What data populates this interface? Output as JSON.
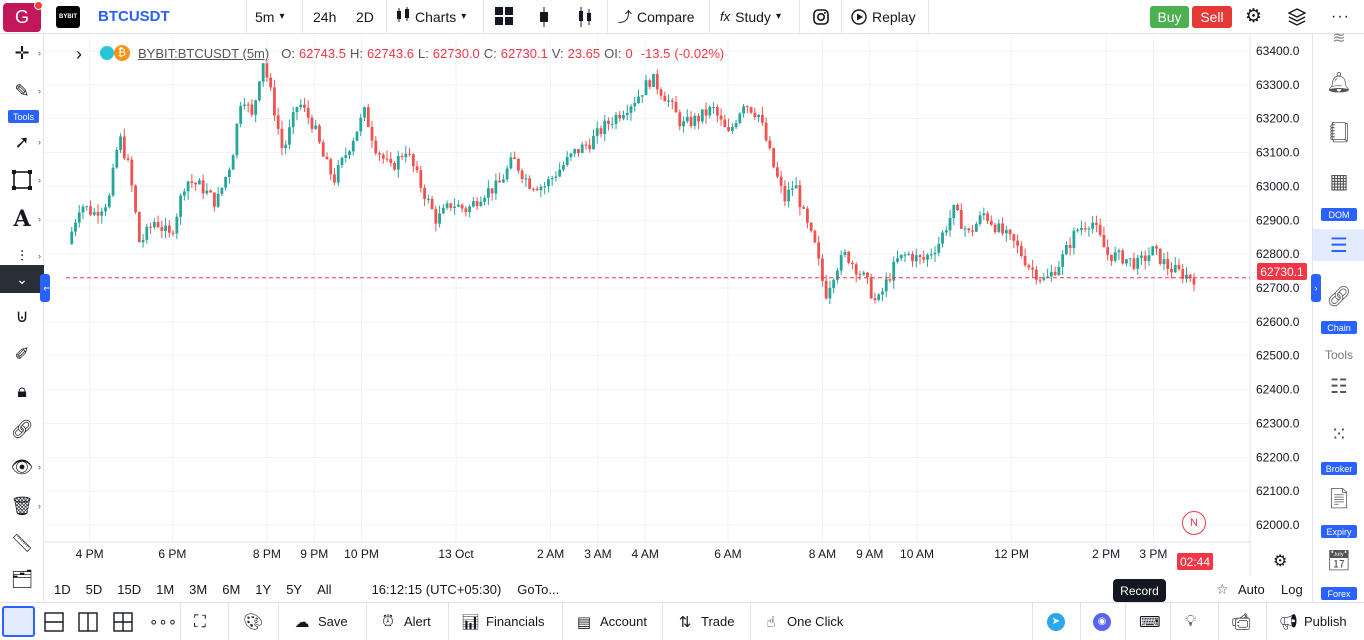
{
  "topbar": {
    "logo_letter": "G",
    "exchange_logo_text": "BYBIT",
    "symbol": "BTCUSDT",
    "interval": "5m",
    "range_24h": "24h",
    "range_2d": "2D",
    "charts_label": "Charts",
    "compare_label": "Compare",
    "study_label": "Study",
    "replay_label": "Replay",
    "buy_label": "Buy",
    "sell_label": "Sell"
  },
  "legend": {
    "symbol": "BYBIT:BTCUSDT (5m)",
    "o_label": "O:",
    "o_value": "62743.5",
    "h_label": "H:",
    "h_value": "62743.6",
    "l_label": "L:",
    "l_value": "62730.0",
    "c_label": "C:",
    "c_value": "62730.1",
    "v_label": "V:",
    "v_value": "23.65",
    "oi_label": "OI:",
    "oi_value": "0",
    "change": "-13.5",
    "change_pct": "(-0.02%)"
  },
  "left_toolbar": {
    "tools_label": "Tools"
  },
  "right_sidebar": {
    "dom_label": "DOM",
    "chain_label": "Chain",
    "tools_heading": "Tools",
    "broker_label": "Broker",
    "expiry_label": "Expiry",
    "forex_label": "Forex"
  },
  "chart_data": {
    "type": "candlestick",
    "current_price": "62730.1",
    "countdown": "02:44",
    "news_badge": "N",
    "y_ticks": [
      "63400.0",
      "63300.0",
      "63200.0",
      "63100.0",
      "63000.0",
      "62900.0",
      "62800.0",
      "62700.0",
      "62600.0",
      "62500.0",
      "62400.0",
      "62300.0",
      "62200.0",
      "62100.0",
      "62000.0"
    ],
    "ylim": [
      61950,
      63450
    ],
    "x_ticks": [
      {
        "label": "4 PM",
        "t": 0.02
      },
      {
        "label": "6 PM",
        "t": 0.09
      },
      {
        "label": "8 PM",
        "t": 0.17
      },
      {
        "label": "9 PM",
        "t": 0.21
      },
      {
        "label": "10 PM",
        "t": 0.25
      },
      {
        "label": "13 Oct",
        "t": 0.33
      },
      {
        "label": "2 AM",
        "t": 0.41
      },
      {
        "label": "3 AM",
        "t": 0.45
      },
      {
        "label": "4 AM",
        "t": 0.49
      },
      {
        "label": "6 AM",
        "t": 0.56
      },
      {
        "label": "8 AM",
        "t": 0.64
      },
      {
        "label": "9 AM",
        "t": 0.68
      },
      {
        "label": "10 AM",
        "t": 0.72
      },
      {
        "label": "12 PM",
        "t": 0.8
      },
      {
        "label": "2 PM",
        "t": 0.88
      },
      {
        "label": "3 PM",
        "t": 0.92
      }
    ],
    "price_path": [
      [
        0.0,
        62830
      ],
      [
        0.012,
        62950
      ],
      [
        0.025,
        62920
      ],
      [
        0.04,
        62960
      ],
      [
        0.05,
        63150
      ],
      [
        0.06,
        63050
      ],
      [
        0.07,
        62830
      ],
      [
        0.085,
        62900
      ],
      [
        0.1,
        62850
      ],
      [
        0.115,
        63020
      ],
      [
        0.13,
        63000
      ],
      [
        0.145,
        62950
      ],
      [
        0.16,
        63080
      ],
      [
        0.17,
        63280
      ],
      [
        0.18,
        63200
      ],
      [
        0.19,
        63380
      ],
      [
        0.2,
        63250
      ],
      [
        0.21,
        63100
      ],
      [
        0.225,
        63250
      ],
      [
        0.24,
        63180
      ],
      [
        0.25,
        63080
      ],
      [
        0.26,
        63020
      ],
      [
        0.275,
        63120
      ],
      [
        0.29,
        63220
      ],
      [
        0.3,
        63120
      ],
      [
        0.315,
        63050
      ],
      [
        0.33,
        63110
      ],
      [
        0.345,
        63000
      ],
      [
        0.36,
        62900
      ],
      [
        0.375,
        62950
      ],
      [
        0.39,
        62930
      ],
      [
        0.405,
        62980
      ],
      [
        0.42,
        63000
      ],
      [
        0.435,
        63080
      ],
      [
        0.45,
        63010
      ],
      [
        0.465,
        63000
      ],
      [
        0.48,
        63050
      ],
      [
        0.495,
        63100
      ],
      [
        0.51,
        63130
      ],
      [
        0.525,
        63180
      ],
      [
        0.54,
        63220
      ],
      [
        0.555,
        63260
      ],
      [
        0.57,
        63320
      ],
      [
        0.585,
        63260
      ],
      [
        0.6,
        63180
      ],
      [
        0.615,
        63200
      ],
      [
        0.63,
        63230
      ],
      [
        0.645,
        63150
      ],
      [
        0.66,
        63250
      ],
      [
        0.675,
        63210
      ],
      [
        0.69,
        63050
      ],
      [
        0.7,
        62960
      ],
      [
        0.71,
        63010
      ],
      [
        0.72,
        62900
      ],
      [
        0.73,
        62820
      ],
      [
        0.74,
        62680
      ],
      [
        0.75,
        62760
      ],
      [
        0.76,
        62800
      ],
      [
        0.77,
        62760
      ],
      [
        0.78,
        62720
      ],
      [
        0.79,
        62650
      ],
      [
        0.8,
        62720
      ],
      [
        0.81,
        62780
      ],
      [
        0.82,
        62800
      ],
      [
        0.835,
        62780
      ],
      [
        0.85,
        62830
      ],
      [
        0.865,
        62930
      ],
      [
        0.88,
        62860
      ],
      [
        0.895,
        62920
      ],
      [
        0.91,
        62870
      ],
      [
        0.925,
        62830
      ],
      [
        0.94,
        62760
      ],
      [
        0.955,
        62720
      ],
      [
        0.97,
        62780
      ],
      [
        0.985,
        62870
      ],
      [
        1.0,
        62900
      ],
      [
        1.015,
        62800
      ],
      [
        1.03,
        62790
      ],
      [
        1.045,
        62770
      ],
      [
        1.06,
        62810
      ],
      [
        1.075,
        62760
      ],
      [
        1.09,
        62740
      ],
      [
        1.1,
        62730
      ]
    ]
  },
  "range_bar": {
    "ranges": [
      "1D",
      "5D",
      "15D",
      "1M",
      "3M",
      "6M",
      "1Y",
      "5Y",
      "All"
    ],
    "clock": "16:12:15 (UTC+05:30)",
    "goto": "GoTo...",
    "record_label": "Record",
    "auto_label": "Auto",
    "log_label": "Log"
  },
  "bottombar": {
    "save_label": "Save",
    "alert_label": "Alert",
    "financials_label": "Financials",
    "account_label": "Account",
    "trade_label": "Trade",
    "one_click_label": "One Click",
    "publish_label": "Publish"
  },
  "colors": {
    "up": "#26a69a",
    "down": "#ef5350",
    "accent": "#2962ff"
  }
}
